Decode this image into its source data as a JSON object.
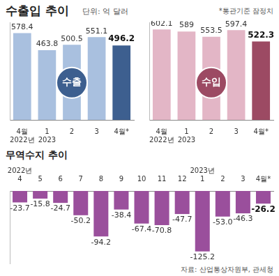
{
  "title": "수출입 추이",
  "unit": "단위: 억 달러",
  "note": "*통관기준 잠정치",
  "source": "자료: 산업통상자원부, 관세청",
  "chart_data": [
    {
      "type": "bar",
      "title": "수출",
      "categories": [
        "4월\n2022년",
        "1\n2023",
        "2",
        "3",
        "4월*"
      ],
      "values": [
        578.4,
        463.8,
        500.5,
        551.1,
        496.2
      ],
      "colors": [
        "#a9c0df",
        "#a9c0df",
        "#a9c0df",
        "#a9c0df",
        "#3d5f8f"
      ],
      "ylim": [
        0,
        650
      ],
      "data_labels": true,
      "tick_labels": "x",
      "grid": false
    },
    {
      "type": "bar",
      "title": "수입",
      "categories": [
        "4월\n2022년",
        "1\n2023",
        "2",
        "3",
        "4월*"
      ],
      "values": [
        602.1,
        589.0,
        553.5,
        597.4,
        522.3
      ],
      "colors": [
        "#e3b6c6",
        "#e3b6c6",
        "#e3b6c6",
        "#e3b6c6",
        "#9c4a63"
      ],
      "ylim": [
        0,
        650
      ],
      "data_labels": true,
      "tick_labels": "x",
      "grid": false
    },
    {
      "type": "bar",
      "title": "무역수지 추이",
      "categories": [
        "2022년\n4",
        "5",
        "6",
        "7",
        "8",
        "9",
        "10",
        "11",
        "12",
        "2023년\n1",
        "2",
        "3",
        "4월*"
      ],
      "values": [
        -23.7,
        -15.8,
        -24.7,
        -50.2,
        -94.2,
        -38.4,
        -67.4,
        -70.8,
        -47.7,
        -125.2,
        -53.0,
        -46.3,
        -26.2
      ],
      "value_labels": [
        "-23.7",
        "-15.8",
        "-24.7",
        "-50.2",
        "-94.2",
        "-38.4",
        "-67.4",
        "-70.8",
        "-47.7",
        "-125.2",
        "-53.0",
        "-46.3",
        "-26.2"
      ],
      "color": "#9a4f9c",
      "ylim": [
        -150,
        0
      ],
      "data_labels": true,
      "tick_labels": "x",
      "grid": false
    }
  ]
}
